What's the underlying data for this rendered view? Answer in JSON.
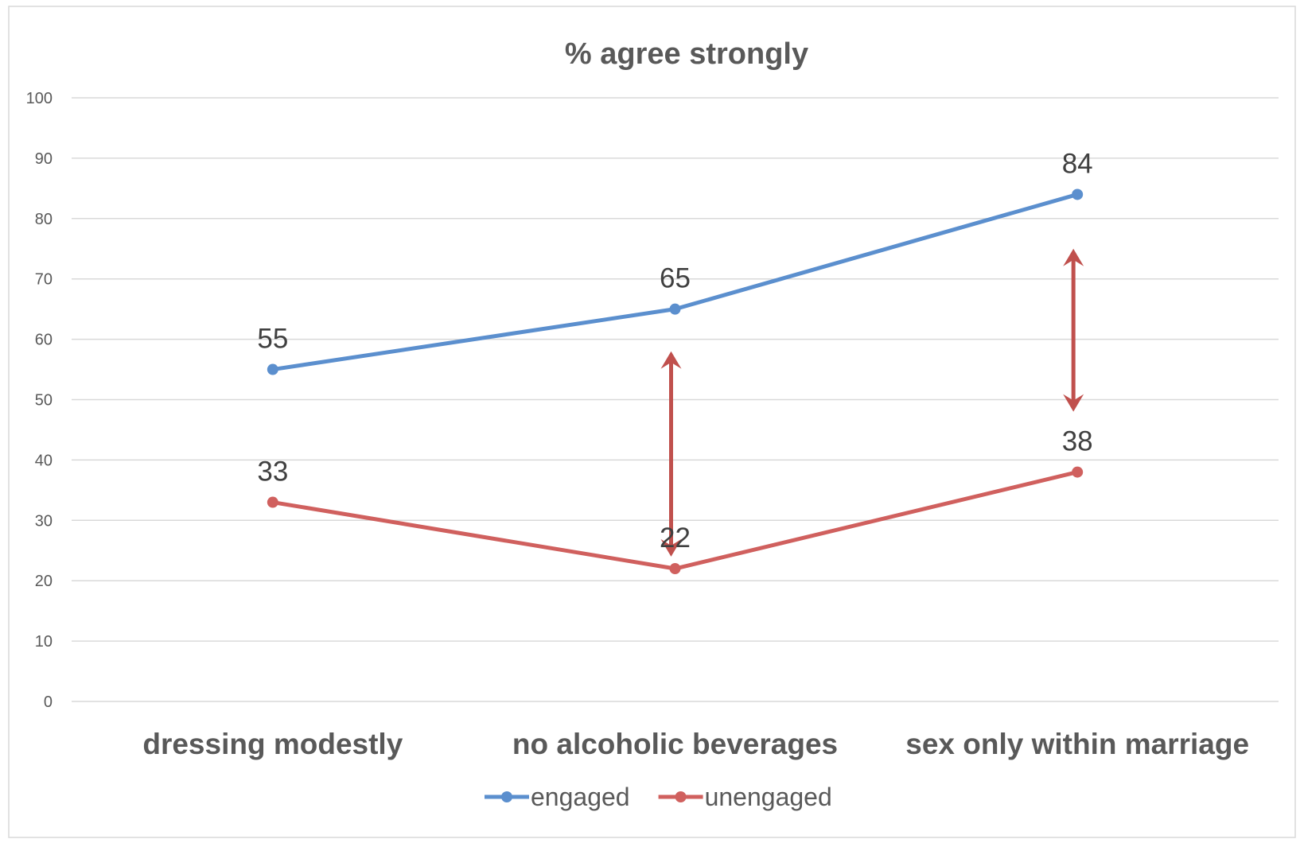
{
  "chart_data": {
    "type": "line",
    "title": "% agree strongly",
    "categories": [
      "dressing modestly",
      "no alcoholic beverages",
      "sex only within marriage"
    ],
    "series": [
      {
        "name": "engaged",
        "values": [
          55,
          65,
          84
        ],
        "color": "#5b8fce"
      },
      {
        "name": "unengaged",
        "values": [
          33,
          22,
          38
        ],
        "color": "#d0605e"
      }
    ],
    "ylim": [
      0,
      100
    ],
    "yticks": [
      0,
      10,
      20,
      30,
      40,
      50,
      60,
      70,
      80,
      90,
      100
    ],
    "grid": true,
    "legend_position": "bottom",
    "annotations": [
      {
        "type": "double-arrow",
        "category": "no alcoholic beverages",
        "from": 24,
        "to": 58,
        "color": "#c0504d"
      },
      {
        "type": "double-arrow",
        "category": "sex only within marriage",
        "from": 48,
        "to": 75,
        "color": "#c0504d"
      }
    ]
  }
}
